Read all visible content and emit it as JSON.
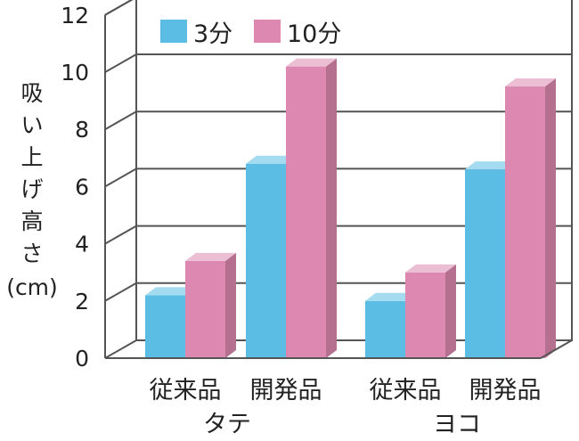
{
  "chart_data": {
    "type": "bar",
    "title": "",
    "ylabel": "吸い上げ高さ(cm)",
    "ylim": [
      0,
      12
    ],
    "yticks": [
      "0",
      "2",
      "4",
      "6",
      "8",
      "10",
      "12"
    ],
    "categories": [
      "従来品",
      "開発品",
      "従来品",
      "開発品"
    ],
    "groups": [
      "タテ",
      "ヨコ"
    ],
    "series": [
      {
        "name": "3分",
        "color": "#5bbde3",
        "values": [
          2.2,
          6.8,
          2.0,
          6.6
        ]
      },
      {
        "name": "10分",
        "color": "#dd88b0",
        "values": [
          3.4,
          10.2,
          3.0,
          9.5
        ]
      }
    ],
    "legend_position": "top",
    "grid": true
  }
}
